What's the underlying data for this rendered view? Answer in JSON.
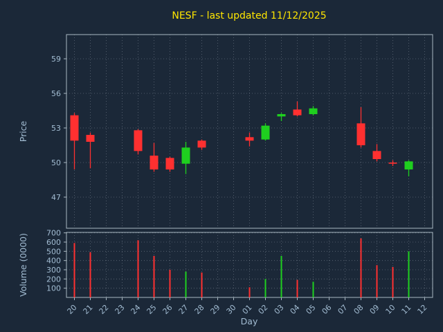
{
  "chart_data": {
    "type": "candlestick",
    "title": "NESF - last updated 11/12/2025",
    "xlabel": "Day",
    "price_axis": {
      "label": "Price",
      "ticks": [
        47,
        50,
        53,
        56,
        59
      ],
      "range": [
        44.3,
        61.1
      ]
    },
    "volume_axis": {
      "label": "Volume (0000)",
      "ticks": [
        100,
        200,
        300,
        400,
        500,
        600,
        700
      ],
      "range": [
        0,
        705
      ]
    },
    "categories": [
      "20",
      "21",
      "22",
      "23",
      "24",
      "25",
      "26",
      "27",
      "28",
      "29",
      "30",
      "01",
      "02",
      "03",
      "04",
      "05",
      "06",
      "07",
      "08",
      "09",
      "10",
      "11",
      "12"
    ],
    "colors": {
      "up": "#1fcf1f",
      "down": "#ff3030",
      "background": "#1b2838",
      "title": "#ffe600",
      "axis_text": "#a3bdd3",
      "grid": "#cfd8e3",
      "spine": "#aab8c2"
    },
    "candles": [
      {
        "day": "20",
        "open": 54.1,
        "high": 54.3,
        "low": 49.4,
        "close": 51.9,
        "volume": 590
      },
      {
        "day": "21",
        "open": 52.4,
        "high": 52.6,
        "low": 49.5,
        "close": 51.8,
        "volume": 490
      },
      {
        "day": "24",
        "open": 52.8,
        "high": 52.9,
        "low": 50.7,
        "close": 51.0,
        "volume": 620
      },
      {
        "day": "25",
        "open": 50.6,
        "high": 51.7,
        "low": 49.2,
        "close": 49.4,
        "volume": 450
      },
      {
        "day": "26",
        "open": 50.4,
        "high": 50.5,
        "low": 49.2,
        "close": 49.4,
        "volume": 300
      },
      {
        "day": "27",
        "open": 49.9,
        "high": 51.8,
        "low": 49.0,
        "close": 51.3,
        "volume": 280
      },
      {
        "day": "28",
        "open": 51.9,
        "high": 52.0,
        "low": 51.1,
        "close": 51.3,
        "volume": 270
      },
      {
        "day": "01",
        "open": 52.2,
        "high": 52.6,
        "low": 51.4,
        "close": 51.9,
        "volume": 110
      },
      {
        "day": "02",
        "open": 52.0,
        "high": 53.4,
        "low": 51.9,
        "close": 53.2,
        "volume": 200
      },
      {
        "day": "03",
        "open": 54.0,
        "high": 54.3,
        "low": 53.6,
        "close": 54.2,
        "volume": 450
      },
      {
        "day": "04",
        "open": 54.6,
        "high": 55.3,
        "low": 54.0,
        "close": 54.1,
        "volume": 190
      },
      {
        "day": "05",
        "open": 54.2,
        "high": 54.9,
        "low": 54.1,
        "close": 54.7,
        "volume": 170
      },
      {
        "day": "08",
        "open": 53.4,
        "high": 54.8,
        "low": 51.3,
        "close": 51.5,
        "volume": 640
      },
      {
        "day": "09",
        "open": 51.0,
        "high": 51.6,
        "low": 50.1,
        "close": 50.3,
        "volume": 350
      },
      {
        "day": "10",
        "open": 50.0,
        "high": 50.2,
        "low": 49.7,
        "close": 49.9,
        "volume": 330
      },
      {
        "day": "11",
        "open": 49.4,
        "high": 50.2,
        "low": 48.8,
        "close": 50.1,
        "volume": 500
      }
    ]
  }
}
